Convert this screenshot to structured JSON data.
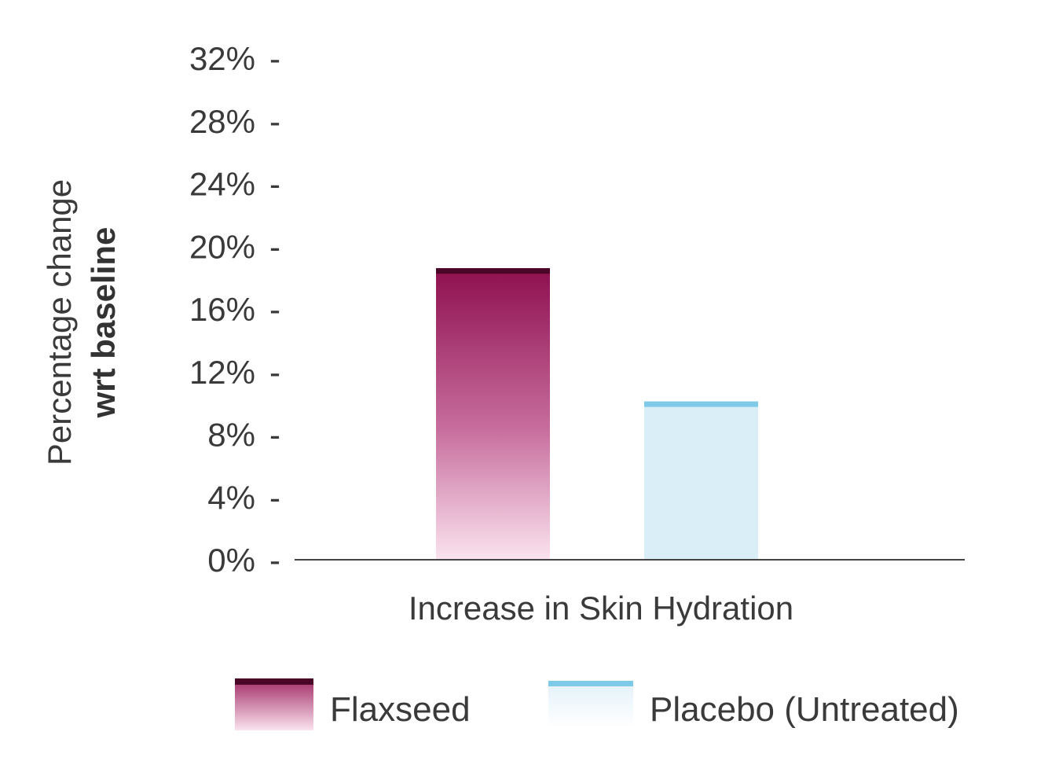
{
  "chart_data": {
    "type": "bar",
    "title": "",
    "ylabel": "Percentage change",
    "ylabel_bold": "wrt baseline",
    "xlabel": "",
    "categories": [
      "Increase in Skin Hydration"
    ],
    "series": [
      {
        "name": "Flaxseed",
        "values": [
          18.6
        ],
        "color": "#8e0f4f",
        "top_color": "#4a0626",
        "bottom_color": "#fbe3ef"
      },
      {
        "name": "Placebo (Untreated)",
        "values": [
          10.1
        ],
        "color": "#daeef8",
        "top_color": "#7ec8e8",
        "bottom_color": "#daeef8"
      }
    ],
    "ylim": [
      0,
      32
    ],
    "yticks": [
      "0%",
      "4%",
      "8%",
      "12%",
      "16%",
      "20%",
      "24%",
      "28%",
      "32%"
    ],
    "ytick_values": [
      0,
      4,
      8,
      12,
      16,
      20,
      24,
      28,
      32
    ],
    "grid": false,
    "legend_position": "bottom"
  }
}
